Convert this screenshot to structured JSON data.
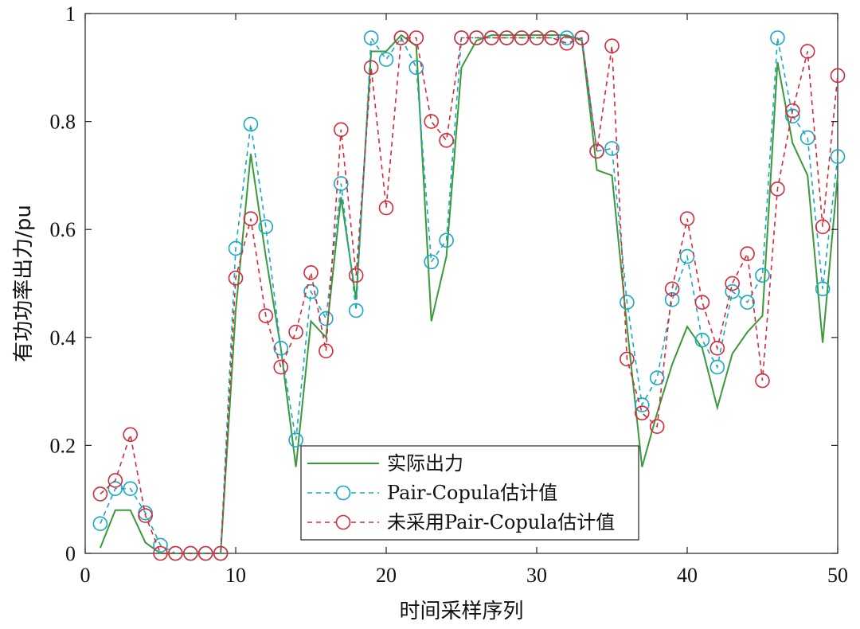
{
  "chart_data": {
    "type": "line",
    "xlabel": "时间采样序列",
    "ylabel": "有功功率出力/pu",
    "xlim": [
      0,
      50
    ],
    "ylim": [
      0,
      1
    ],
    "xticks": [
      "0",
      "10",
      "20",
      "30",
      "40",
      "50"
    ],
    "yticks": [
      "0",
      "0.2",
      "0.4",
      "0.6",
      "0.8",
      "1"
    ],
    "grid": false,
    "legend_position": "bottom-center",
    "x": [
      1,
      2,
      3,
      4,
      5,
      6,
      7,
      8,
      9,
      10,
      11,
      12,
      13,
      14,
      15,
      16,
      17,
      18,
      19,
      20,
      21,
      22,
      23,
      24,
      25,
      26,
      27,
      28,
      29,
      30,
      31,
      32,
      33,
      34,
      35,
      36,
      37,
      38,
      39,
      40,
      41,
      42,
      43,
      44,
      45,
      46,
      47,
      48,
      49,
      50
    ],
    "series": [
      {
        "name": "实际出力",
        "color": "#3a9a3a",
        "style": "solid",
        "marker": "none",
        "values": [
          0.01,
          0.08,
          0.08,
          0.02,
          0,
          0,
          0,
          0,
          0,
          0.45,
          0.74,
          0.55,
          0.38,
          0.16,
          0.43,
          0.4,
          0.66,
          0.47,
          0.93,
          0.93,
          0.96,
          0.94,
          0.43,
          0.55,
          0.9,
          0.95,
          0.96,
          0.96,
          0.96,
          0.96,
          0.96,
          0.96,
          0.95,
          0.71,
          0.7,
          0.42,
          0.16,
          0.26,
          0.35,
          0.42,
          0.38,
          0.27,
          0.37,
          0.41,
          0.44,
          0.91,
          0.76,
          0.7,
          0.39,
          0.7
        ]
      },
      {
        "name": "Pair-Copula估计值",
        "color": "#17a9c4",
        "style": "dashed",
        "marker": "circle",
        "values": [
          0.055,
          0.12,
          0.12,
          0.075,
          0.015,
          0,
          0,
          0,
          0,
          0.565,
          0.795,
          0.605,
          0.38,
          0.21,
          0.485,
          0.435,
          0.685,
          0.45,
          0.955,
          0.915,
          0.955,
          0.9,
          0.54,
          0.58,
          0.955,
          0.955,
          0.955,
          0.955,
          0.955,
          0.955,
          0.955,
          0.955,
          0.955,
          0.745,
          0.75,
          0.465,
          0.275,
          0.325,
          0.47,
          0.55,
          0.395,
          0.345,
          0.485,
          0.465,
          0.515,
          0.955,
          0.81,
          0.77,
          0.49,
          0.735
        ]
      },
      {
        "name": "未采用Pair-Copula估计值",
        "color": "#d42a3a",
        "style": "dashed",
        "marker": "circle",
        "values": [
          0.11,
          0.135,
          0.22,
          0.07,
          0,
          0,
          0,
          0,
          0,
          0.51,
          0.62,
          0.44,
          0.345,
          0.41,
          0.52,
          0.375,
          0.785,
          0.515,
          0.9,
          0.64,
          0.955,
          0.955,
          0.8,
          0.765,
          0.955,
          0.955,
          0.955,
          0.955,
          0.955,
          0.955,
          0.955,
          0.945,
          0.955,
          0.745,
          0.94,
          0.36,
          0.26,
          0.235,
          0.49,
          0.62,
          0.465,
          0.38,
          0.5,
          0.555,
          0.32,
          0.675,
          0.82,
          0.93,
          0.605,
          0.885
        ]
      }
    ]
  }
}
